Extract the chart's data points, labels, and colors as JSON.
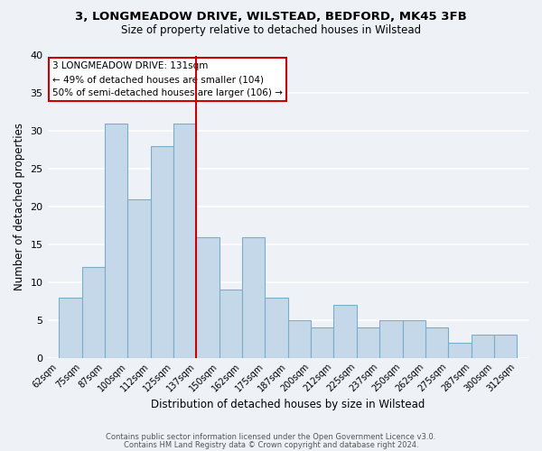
{
  "title": "3, LONGMEADOW DRIVE, WILSTEAD, BEDFORD, MK45 3FB",
  "subtitle": "Size of property relative to detached houses in Wilstead",
  "xlabel": "Distribution of detached houses by size in Wilstead",
  "ylabel": "Number of detached properties",
  "bar_labels": [
    "62sqm",
    "75sqm",
    "87sqm",
    "100sqm",
    "112sqm",
    "125sqm",
    "137sqm",
    "150sqm",
    "162sqm",
    "175sqm",
    "187sqm",
    "200sqm",
    "212sqm",
    "225sqm",
    "237sqm",
    "250sqm",
    "262sqm",
    "275sqm",
    "287sqm",
    "300sqm",
    "312sqm"
  ],
  "bar_values": [
    8,
    12,
    31,
    21,
    28,
    31,
    16,
    9,
    16,
    8,
    5,
    4,
    7,
    4,
    5,
    5,
    4,
    2,
    3,
    3
  ],
  "bar_color": "#c5d8ea",
  "bar_edge_color": "#7aaec8",
  "vline_x": 6,
  "vline_color": "#cc0000",
  "ylim": [
    0,
    40
  ],
  "annotation_text": "3 LONGMEADOW DRIVE: 131sqm\n← 49% of detached houses are smaller (104)\n50% of semi-detached houses are larger (106) →",
  "annotation_box_edgecolor": "#cc0000",
  "footer_line1": "Contains HM Land Registry data © Crown copyright and database right 2024.",
  "footer_line2": "Contains public sector information licensed under the Open Government Licence v3.0.",
  "bg_color": "#eef2f7",
  "grid_color": "#ffffff"
}
